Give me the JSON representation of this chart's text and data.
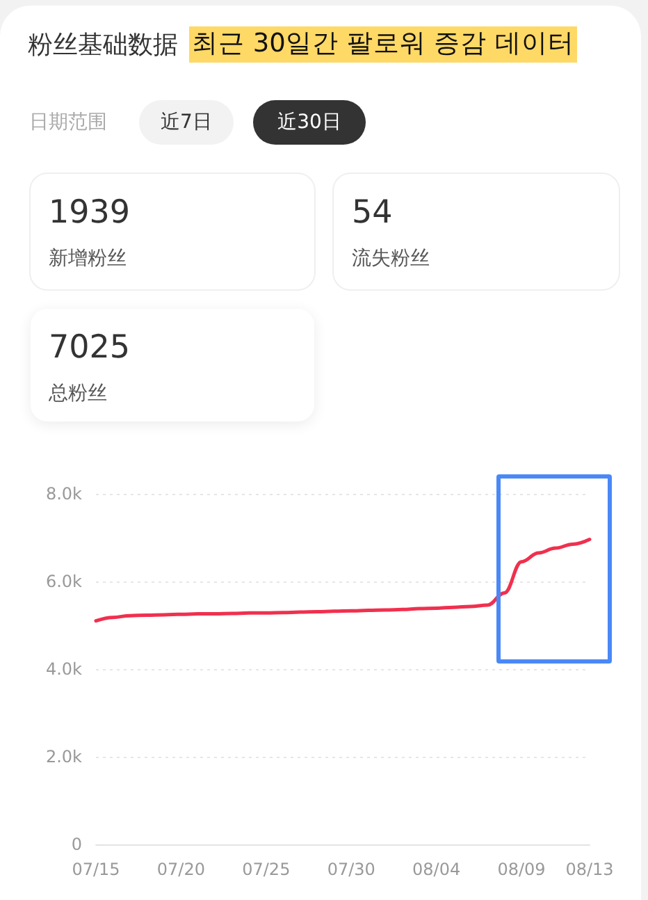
{
  "chart_data": {
    "type": "line",
    "title": "粉丝基础数据",
    "subtitle": "최근 30일간 팔로워 증감 데이터",
    "annotations": [
      "日期范围",
      "近7日",
      "近30日",
      "1939",
      "新增粉丝",
      "54",
      "流失粉丝",
      "7025",
      "总粉丝"
    ],
    "categories": [
      "07/15",
      null,
      null,
      null,
      null,
      "07/20",
      null,
      null,
      null,
      null,
      "07/25",
      null,
      null,
      null,
      null,
      "07/30",
      null,
      null,
      null,
      null,
      "08/04",
      null,
      null,
      null,
      null,
      "08/09",
      null,
      null,
      null,
      "08/13"
    ],
    "series": [
      {
        "color": "#f0304e",
        "values": [
          5100,
          5180,
          5220,
          5230,
          5240,
          5250,
          5260,
          5260,
          5270,
          5280,
          5280,
          5290,
          5300,
          5310,
          5320,
          5330,
          5340,
          5350,
          5360,
          5380,
          5390,
          5410,
          5430,
          5460,
          5740,
          6450,
          6650,
          6760,
          6850,
          6960
        ]
      }
    ],
    "ylim": [
      0,
      8000
    ],
    "yticks": [
      0,
      {
        "value": 2000,
        "label": "2.0k"
      },
      {
        "value": 4000,
        "label": "4.0k"
      },
      {
        "value": 6000,
        "label": "6.0k"
      },
      {
        "value": 8000,
        "label": "8.0k"
      }
    ],
    "grid": "y",
    "marker": "none"
  }
}
